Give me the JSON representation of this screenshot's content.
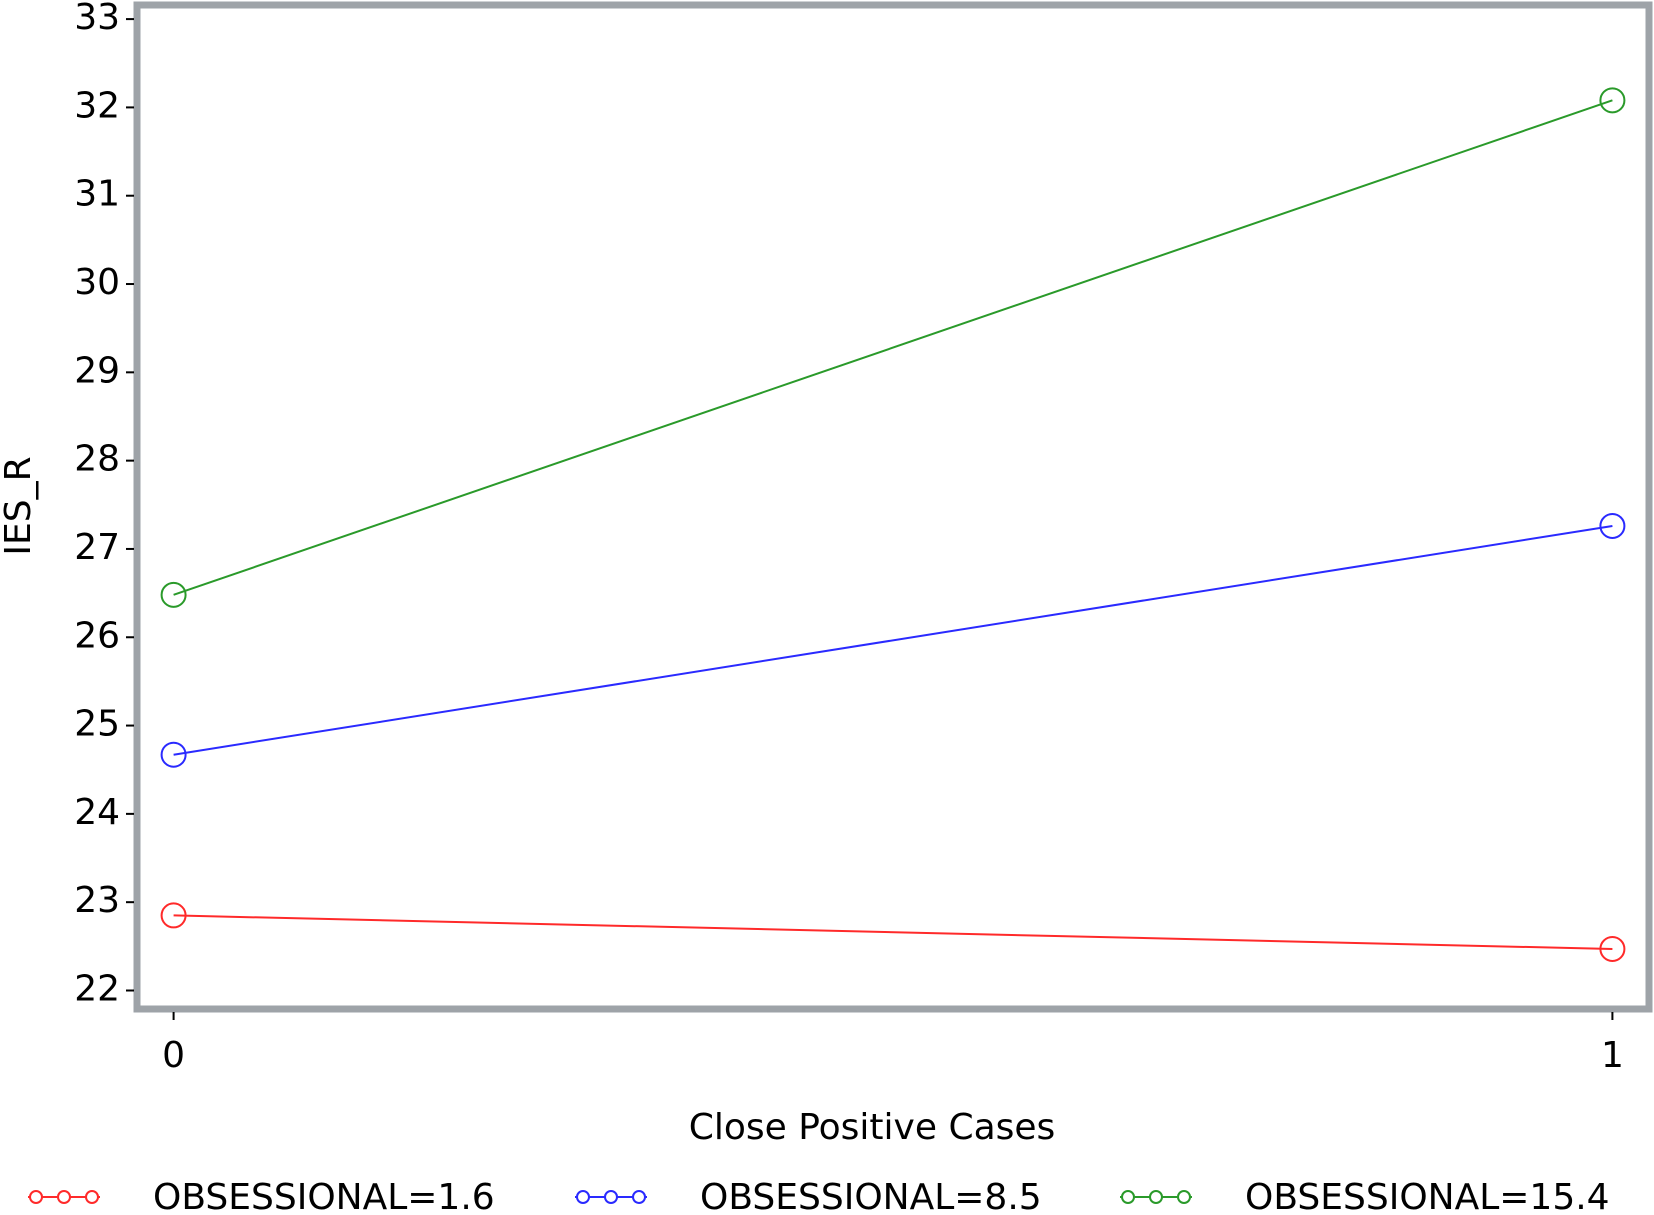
{
  "chart_data": {
    "type": "line",
    "x_label": "Close Positive Cases",
    "y_label": "IES_R",
    "x": [
      0,
      1
    ],
    "xlim": [
      -0.023,
      1.023
    ],
    "xticks": [
      0,
      1
    ],
    "ylim": [
      21.83,
      33.12
    ],
    "yticks": [
      22,
      23,
      24,
      25,
      26,
      27,
      28,
      29,
      30,
      31,
      32,
      33
    ],
    "legend": "bottom",
    "series": [
      {
        "name": "OBSESSIONAL=1.6",
        "color": "#ff2a2a",
        "values": [
          22.85,
          22.47
        ]
      },
      {
        "name": "OBSESSIONAL=8.5",
        "color": "#2a2aff",
        "values": [
          24.67,
          27.26
        ]
      },
      {
        "name": "OBSESSIONAL=15.4",
        "color": "#2a9a2a",
        "values": [
          26.48,
          32.08
        ]
      }
    ]
  }
}
